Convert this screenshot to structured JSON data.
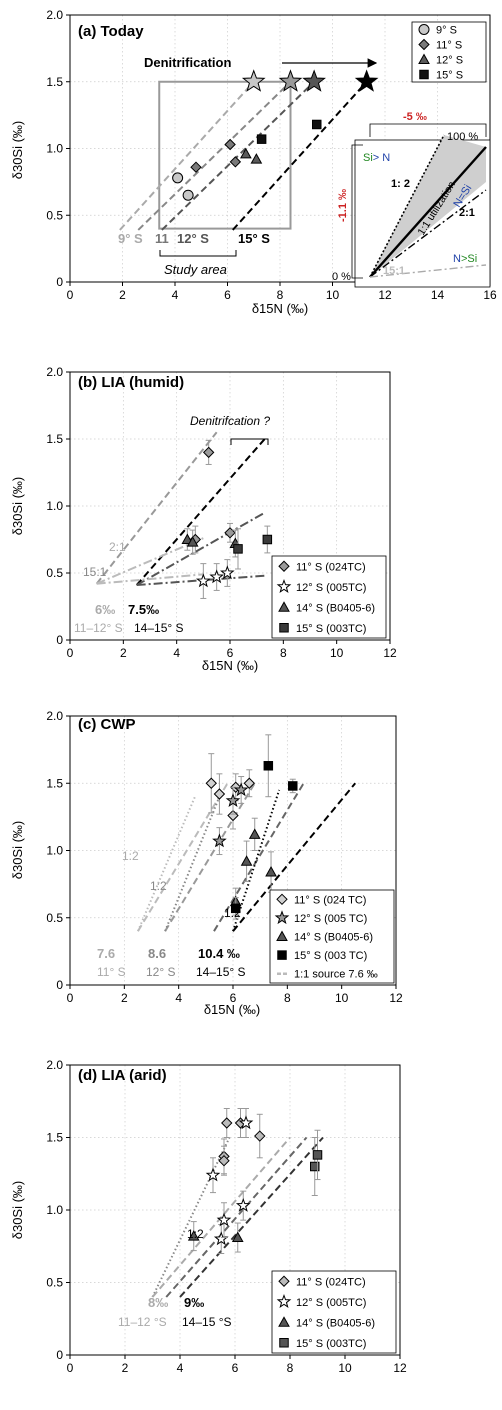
{
  "chart_data": [
    {
      "type": "scatter",
      "title": "(a) Today",
      "xlabel": "δ15N (‰)",
      "ylabel": "δ30Si (‰)",
      "xlim": [
        0,
        16
      ],
      "ylim": [
        0,
        2.0
      ],
      "xticks": [
        "0",
        "2",
        "4",
        "6",
        "8",
        "10",
        "12",
        "14",
        "16"
      ],
      "yticks": [
        "0",
        "0.5",
        "1.0",
        "1.5",
        "2.0"
      ],
      "grid": true,
      "legend": {
        "position": "top-right",
        "entries": [
          {
            "label": "9° S",
            "marker": "circle",
            "color": "#c8c8c8"
          },
          {
            "label": "11° S",
            "marker": "diamond",
            "color": "#7a7a7a"
          },
          {
            "label": "12° S",
            "marker": "triangle",
            "color": "#5a5a5a"
          },
          {
            "label": "15° S",
            "marker": "square",
            "color": "#111111"
          }
        ]
      },
      "series": [
        {
          "name": "9° S",
          "marker": "circle",
          "color": "#c8c8c8",
          "points": [
            [
              4.1,
              0.78
            ],
            [
              4.5,
              0.65
            ]
          ]
        },
        {
          "name": "11° S",
          "marker": "diamond",
          "color": "#7a7a7a",
          "points": [
            [
              4.8,
              0.86
            ],
            [
              6.1,
              1.03
            ],
            [
              6.3,
              0.9
            ]
          ]
        },
        {
          "name": "12° S",
          "marker": "triangle",
          "color": "#5a5a5a",
          "points": [
            [
              6.7,
              0.96
            ],
            [
              7.1,
              0.92
            ]
          ]
        },
        {
          "name": "15° S",
          "marker": "square",
          "color": "#111111",
          "points": [
            [
              7.3,
              1.07
            ],
            [
              9.4,
              1.18
            ]
          ]
        }
      ],
      "stars": [
        {
          "x": 7.0,
          "y": 1.5,
          "color": "#c8c8c8"
        },
        {
          "x": 8.4,
          "y": 1.5,
          "color": "#999999"
        },
        {
          "x": 9.3,
          "y": 1.5,
          "color": "#555555"
        },
        {
          "x": 11.3,
          "y": 1.5,
          "color": "#000000"
        }
      ],
      "lines": [
        {
          "from": [
            1.9,
            0.39
          ],
          "to": [
            7.0,
            1.5
          ],
          "style": "dashed",
          "color": "#aaaaaa"
        },
        {
          "from": [
            2.6,
            0.39
          ],
          "to": [
            8.4,
            1.5
          ],
          "style": "dashed",
          "color": "#888888"
        },
        {
          "from": [
            3.5,
            0.39
          ],
          "to": [
            9.3,
            1.5
          ],
          "style": "dashed",
          "color": "#555555"
        },
        {
          "from": [
            6.2,
            0.39
          ],
          "to": [
            11.3,
            1.5
          ],
          "style": "dashed",
          "color": "#000000"
        }
      ],
      "study_box": {
        "x": [
          3.4,
          8.4
        ],
        "y": [
          0.4,
          1.5
        ]
      },
      "annotations": {
        "denitrification": "Denitrification",
        "study_area": "Study area",
        "lbl_9s": "9° S",
        "lbl_11": "11",
        "lbl_12s": "12° S",
        "lbl_15s": "15° S"
      },
      "inset": {
        "pct_n": "-5 ‰",
        "pct_si": "-1.1 ‰",
        "pct_100": "100 %",
        "pct_0": "0 %",
        "si_gt_n_a": "Si",
        "si_gt_n_b": "> N",
        "ratio_12": "1: 2",
        "util": "1:1 utilization",
        "n_eq_si": "N=Si",
        "ratio_21": "2:1",
        "n_gt_si_a": "N",
        "n_gt_si_b": ">Si",
        "ratio_151": "15:1"
      }
    },
    {
      "type": "scatter",
      "title": "(b) LIA (humid)",
      "xlabel": "δ15N (‰)",
      "ylabel": "δ30Si (‰)",
      "xlim": [
        0,
        12
      ],
      "ylim": [
        0,
        2.0
      ],
      "xticks": [
        "0",
        "2",
        "4",
        "6",
        "8",
        "10",
        "12"
      ],
      "yticks": [
        "0",
        "0.5",
        "1.0",
        "1.5",
        "2.0"
      ],
      "grid": true,
      "legend": {
        "position": "bottom-right",
        "entries": [
          {
            "label": "11° S (024TC)",
            "marker": "diamond",
            "color": "#9a9a9a"
          },
          {
            "label": "12° S (005TC)",
            "marker": "star",
            "color": "#ffffff"
          },
          {
            "label": "14° S (B0405-6)",
            "marker": "triangle",
            "color": "#555555"
          },
          {
            "label": "15° S (003TC)",
            "marker": "square",
            "color": "#3a3a3a"
          }
        ]
      },
      "series": [
        {
          "name": "11° S (024TC)",
          "marker": "diamond",
          "color": "#9a9a9a",
          "points": [
            [
              5.2,
              1.4,
              0.09
            ],
            [
              4.7,
              0.75,
              0.1
            ],
            [
              6.0,
              0.8,
              0.07
            ]
          ]
        },
        {
          "name": "12° S (005TC)",
          "marker": "star",
          "color": "#ffffff",
          "points": [
            [
              5.0,
              0.44,
              0.13
            ],
            [
              5.5,
              0.47,
              0.1
            ],
            [
              5.9,
              0.5,
              0.1
            ]
          ]
        },
        {
          "name": "14° S (B0405-6)",
          "marker": "triangle",
          "color": "#555555",
          "points": [
            [
              4.4,
              0.75,
              0.08
            ],
            [
              4.6,
              0.73,
              0.09
            ],
            [
              6.2,
              0.72,
              0.1
            ]
          ]
        },
        {
          "name": "15° S (003TC)",
          "marker": "square",
          "color": "#3a3a3a",
          "points": [
            [
              6.3,
              0.68,
              0.15
            ],
            [
              7.4,
              0.75,
              0.1
            ]
          ]
        }
      ],
      "lines": [
        {
          "from": [
            1.0,
            0.42
          ],
          "to": [
            5.5,
            1.55
          ],
          "style": "dashed",
          "color": "#999999"
        },
        {
          "from": [
            2.5,
            0.41
          ],
          "to": [
            7.3,
            1.5
          ],
          "style": "dashed",
          "color": "#000000"
        },
        {
          "from": [
            1.0,
            0.42
          ],
          "to": [
            5.0,
            0.76
          ],
          "style": "dashdot",
          "color": "#bbbbbb"
        },
        {
          "from": [
            2.5,
            0.41
          ],
          "to": [
            7.3,
            0.95
          ],
          "style": "dashdot",
          "color": "#555555"
        },
        {
          "from": [
            1.0,
            0.42
          ],
          "to": [
            5.0,
            0.49
          ],
          "style": "dashdot",
          "color": "#bbbbbb"
        },
        {
          "from": [
            2.5,
            0.41
          ],
          "to": [
            7.3,
            0.48
          ],
          "style": "dashdot",
          "color": "#555555"
        }
      ],
      "annotations": {
        "denit": "Denitrifcation ?",
        "r21": "2:1",
        "r151": "15:1",
        "src_a": "6‰",
        "src_b": "7.5‰",
        "lat_a": "11–12° S",
        "lat_b": "14–15° S"
      }
    },
    {
      "type": "scatter",
      "title": "(c) CWP",
      "xlabel": "δ15N (‰)",
      "ylabel": "δ30Si (‰)",
      "xlim": [
        0,
        12
      ],
      "ylim": [
        0,
        2.0
      ],
      "xticks": [
        "0",
        "2",
        "4",
        "6",
        "8",
        "10",
        "12"
      ],
      "yticks": [
        "0",
        "0.5",
        "1.0",
        "1.5",
        "2.0"
      ],
      "grid": true,
      "legend": {
        "position": "bottom-right",
        "entries": [
          {
            "label": "11° S (024 TC)",
            "marker": "diamond",
            "color": "#d0d0d0"
          },
          {
            "label": "12° S (005 TC)",
            "marker": "star",
            "color": "#999999"
          },
          {
            "label": "14° S (B0405-6)",
            "marker": "triangle",
            "color": "#555555"
          },
          {
            "label": "15° S (003 TC)",
            "marker": "square",
            "color": "#000000"
          },
          {
            "label": "1:1  source 7.6 ‰",
            "marker": "dash",
            "color": "#bbbbbb"
          }
        ]
      },
      "series": [
        {
          "name": "11° S (024 TC)",
          "marker": "diamond",
          "color": "#d0d0d0",
          "points": [
            [
              5.2,
              1.5,
              0.22
            ],
            [
              5.5,
              1.42,
              0.15
            ],
            [
              6.0,
              1.26,
              0.1
            ],
            [
              6.1,
              1.47,
              0.1
            ],
            [
              6.6,
              1.5,
              0.1
            ]
          ]
        },
        {
          "name": "12° S (005 TC)",
          "marker": "star",
          "color": "#999999",
          "points": [
            [
              5.5,
              1.07,
              0.1
            ],
            [
              6.0,
              1.37,
              0.1
            ],
            [
              6.3,
              1.45,
              0.1
            ]
          ]
        },
        {
          "name": "14° S (B0405-6)",
          "marker": "triangle",
          "color": "#555555",
          "points": [
            [
              6.1,
              0.62,
              0.1
            ],
            [
              6.5,
              0.92,
              0.15
            ],
            [
              6.8,
              1.12,
              0.12
            ],
            [
              7.4,
              0.84,
              0.15
            ]
          ]
        },
        {
          "name": "15° S (003 TC)",
          "marker": "square",
          "color": "#000000",
          "points": [
            [
              6.1,
              0.57,
              0.08
            ],
            [
              7.3,
              1.63,
              0.23
            ],
            [
              8.2,
              1.48,
              0.05
            ]
          ]
        }
      ],
      "lines": [
        {
          "from": [
            2.5,
            0.4
          ],
          "to": [
            5.8,
            1.5
          ],
          "style": "dashed",
          "color": "#bbbbbb"
        },
        {
          "from": [
            3.5,
            0.4
          ],
          "to": [
            6.8,
            1.5
          ],
          "style": "dashed",
          "color": "#999999"
        },
        {
          "from": [
            5.3,
            0.4
          ],
          "to": [
            8.6,
            1.5
          ],
          "style": "dashed",
          "color": "#666666"
        },
        {
          "from": [
            6.0,
            0.4
          ],
          "to": [
            10.5,
            1.5
          ],
          "style": "dashed",
          "color": "#000000"
        },
        {
          "from": [
            2.5,
            0.4
          ],
          "to": [
            4.6,
            1.4
          ],
          "style": "dotted",
          "color": "#bbbbbb"
        },
        {
          "from": [
            3.5,
            0.4
          ],
          "to": [
            5.5,
            1.4
          ],
          "style": "dotted",
          "color": "#888888"
        },
        {
          "from": [
            6.0,
            0.4
          ],
          "to": [
            7.7,
            1.45
          ],
          "style": "dotted",
          "color": "#000000"
        }
      ],
      "annotations": {
        "r12a": "1:2",
        "r12b": "1:2",
        "r12c": "1:2",
        "src_a": "7.6",
        "src_b": "8.6",
        "src_c": "10.4 ‰",
        "lat_a": "11° S",
        "lat_b": "12° S",
        "lat_c": "14–15° S"
      }
    },
    {
      "type": "scatter",
      "title": "(d) LIA (arid)",
      "xlabel": "",
      "ylabel": "δ30Si (‰)",
      "xlim": [
        0,
        12
      ],
      "ylim": [
        0,
        2.0
      ],
      "xticks": [
        "0",
        "2",
        "4",
        "6",
        "8",
        "10",
        "12"
      ],
      "yticks": [
        "0",
        "0.5",
        "1.0",
        "1.5",
        "2.0"
      ],
      "grid": true,
      "legend": {
        "position": "bottom-right",
        "entries": [
          {
            "label": "11° S (024TC)",
            "marker": "diamond",
            "color": "#bbbbbb"
          },
          {
            "label": "12° S (005TC)",
            "marker": "star",
            "color": "#ffffff"
          },
          {
            "label": "14° S (B0405-6)",
            "marker": "triangle",
            "color": "#555555"
          },
          {
            "label": "15° S (003TC)",
            "marker": "square",
            "color": "#555555"
          }
        ]
      },
      "series": [
        {
          "name": "11° S (024TC)",
          "marker": "diamond",
          "color": "#bbbbbb",
          "points": [
            [
              5.6,
              1.37,
              0.12
            ],
            [
              5.7,
              1.6,
              0.1
            ],
            [
              6.2,
              1.6,
              0.1
            ],
            [
              6.9,
              1.51,
              0.15
            ],
            [
              5.6,
              1.34,
              0.1
            ]
          ]
        },
        {
          "name": "12° S (005TC)",
          "marker": "star",
          "color": "#ffffff",
          "points": [
            [
              5.2,
              1.24,
              0.12
            ],
            [
              5.5,
              0.8,
              0.1
            ],
            [
              5.6,
              0.93,
              0.12
            ],
            [
              6.3,
              1.03,
              0.1
            ],
            [
              6.4,
              1.6,
              0.1
            ]
          ]
        },
        {
          "name": "14° S (B0405-6)",
          "marker": "triangle",
          "color": "#555555",
          "points": [
            [
              4.5,
              0.82,
              0.1
            ],
            [
              6.1,
              0.81,
              0.1
            ]
          ]
        },
        {
          "name": "15° S (003TC)",
          "marker": "square",
          "color": "#555555",
          "points": [
            [
              8.9,
              1.3,
              0.2
            ],
            [
              9.0,
              1.38,
              0.17
            ]
          ]
        }
      ],
      "lines": [
        {
          "from": [
            3.0,
            0.4
          ],
          "to": [
            5.8,
            1.5
          ],
          "style": "dotted",
          "color": "#888888"
        },
        {
          "from": [
            3.0,
            0.4
          ],
          "to": [
            8.0,
            1.5
          ],
          "style": "dashed",
          "color": "#aaaaaa"
        },
        {
          "from": [
            3.5,
            0.4
          ],
          "to": [
            8.6,
            1.5
          ],
          "style": "dashed",
          "color": "#666666"
        },
        {
          "from": [
            4.0,
            0.4
          ],
          "to": [
            9.2,
            1.5
          ],
          "style": "dashed",
          "color": "#333333"
        }
      ],
      "annotations": {
        "r12": "1:2",
        "src_a": "8‰",
        "src_b": "9‰",
        "lat_a": "11–12 °S",
        "lat_b": "14–15 °S"
      }
    }
  ]
}
